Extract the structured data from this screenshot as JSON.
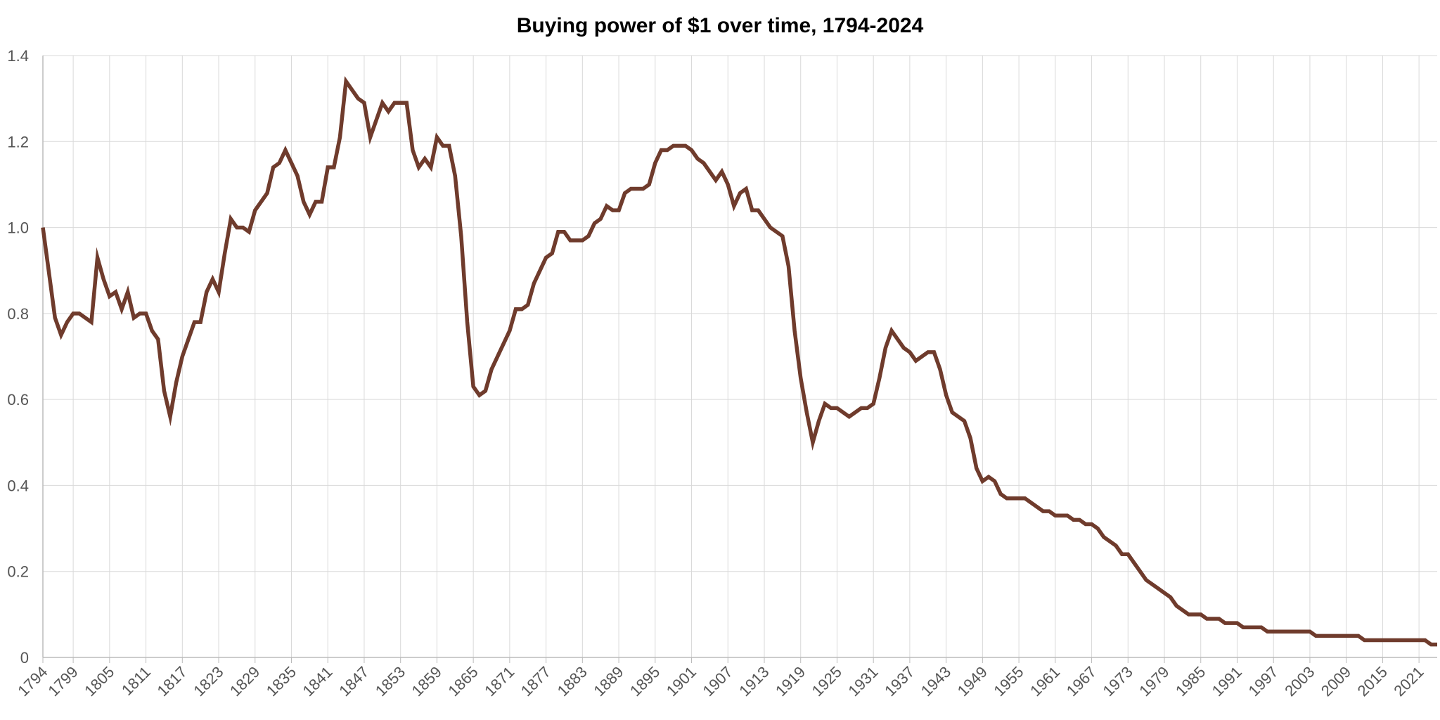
{
  "chart_data": {
    "type": "line",
    "title": "Buying power of $1 over time, 1794-2024",
    "xlabel": "",
    "ylabel": "",
    "xlim": [
      1794,
      2024
    ],
    "ylim": [
      0,
      1.4
    ],
    "yticks": [
      0,
      0.2,
      0.4,
      0.6,
      0.8,
      1.0,
      1.2,
      1.4
    ],
    "ytick_labels": [
      "0",
      "0.2",
      "0.4",
      "0.6",
      "0.8",
      "1.0",
      "1.2",
      "1.4"
    ],
    "xticks": [
      1794,
      1799,
      1805,
      1811,
      1817,
      1823,
      1829,
      1835,
      1841,
      1847,
      1853,
      1859,
      1865,
      1871,
      1877,
      1883,
      1889,
      1895,
      1901,
      1907,
      1913,
      1919,
      1925,
      1931,
      1937,
      1943,
      1949,
      1955,
      1961,
      1967,
      1973,
      1979,
      1985,
      1991,
      1997,
      2003,
      2009,
      2015,
      2021
    ],
    "grid": true,
    "legend": "none",
    "colors": {
      "line": "#6f3b2c",
      "grid": "#d9d9d9",
      "axis": "#bbbbbb",
      "tick_text": "#555555"
    },
    "series": [
      {
        "name": "Buying power of $1",
        "points": [
          [
            1794,
            1.0
          ],
          [
            1796,
            0.79
          ],
          [
            1797,
            0.75
          ],
          [
            1798,
            0.78
          ],
          [
            1799,
            0.8
          ],
          [
            1800,
            0.8
          ],
          [
            1802,
            0.78
          ],
          [
            1803,
            0.93
          ],
          [
            1804,
            0.88
          ],
          [
            1805,
            0.84
          ],
          [
            1806,
            0.85
          ],
          [
            1807,
            0.81
          ],
          [
            1808,
            0.85
          ],
          [
            1809,
            0.79
          ],
          [
            1810,
            0.8
          ],
          [
            1811,
            0.8
          ],
          [
            1812,
            0.76
          ],
          [
            1813,
            0.74
          ],
          [
            1814,
            0.62
          ],
          [
            1815,
            0.56
          ],
          [
            1816,
            0.64
          ],
          [
            1817,
            0.7
          ],
          [
            1819,
            0.78
          ],
          [
            1820,
            0.78
          ],
          [
            1821,
            0.85
          ],
          [
            1822,
            0.88
          ],
          [
            1823,
            0.85
          ],
          [
            1824,
            0.94
          ],
          [
            1825,
            1.02
          ],
          [
            1826,
            1.0
          ],
          [
            1827,
            1.0
          ],
          [
            1828,
            0.99
          ],
          [
            1829,
            1.04
          ],
          [
            1831,
            1.08
          ],
          [
            1832,
            1.14
          ],
          [
            1833,
            1.15
          ],
          [
            1834,
            1.18
          ],
          [
            1836,
            1.12
          ],
          [
            1837,
            1.06
          ],
          [
            1838,
            1.03
          ],
          [
            1839,
            1.06
          ],
          [
            1840,
            1.06
          ],
          [
            1841,
            1.14
          ],
          [
            1842,
            1.14
          ],
          [
            1843,
            1.21
          ],
          [
            1844,
            1.34
          ],
          [
            1846,
            1.3
          ],
          [
            1847,
            1.29
          ],
          [
            1848,
            1.21
          ],
          [
            1850,
            1.29
          ],
          [
            1851,
            1.27
          ],
          [
            1852,
            1.29
          ],
          [
            1854,
            1.29
          ],
          [
            1855,
            1.18
          ],
          [
            1856,
            1.14
          ],
          [
            1857,
            1.16
          ],
          [
            1858,
            1.14
          ],
          [
            1859,
            1.21
          ],
          [
            1860,
            1.19
          ],
          [
            1861,
            1.19
          ],
          [
            1862,
            1.12
          ],
          [
            1863,
            0.98
          ],
          [
            1864,
            0.78
          ],
          [
            1865,
            0.63
          ],
          [
            1866,
            0.61
          ],
          [
            1867,
            0.62
          ],
          [
            1868,
            0.67
          ],
          [
            1871,
            0.76
          ],
          [
            1872,
            0.81
          ],
          [
            1873,
            0.81
          ],
          [
            1874,
            0.82
          ],
          [
            1875,
            0.87
          ],
          [
            1877,
            0.93
          ],
          [
            1878,
            0.94
          ],
          [
            1879,
            0.99
          ],
          [
            1880,
            0.99
          ],
          [
            1881,
            0.97
          ],
          [
            1883,
            0.97
          ],
          [
            1884,
            0.98
          ],
          [
            1885,
            1.01
          ],
          [
            1886,
            1.02
          ],
          [
            1887,
            1.05
          ],
          [
            1888,
            1.04
          ],
          [
            1889,
            1.04
          ],
          [
            1890,
            1.08
          ],
          [
            1891,
            1.09
          ],
          [
            1893,
            1.09
          ],
          [
            1894,
            1.1
          ],
          [
            1895,
            1.15
          ],
          [
            1896,
            1.18
          ],
          [
            1897,
            1.18
          ],
          [
            1898,
            1.19
          ],
          [
            1900,
            1.19
          ],
          [
            1901,
            1.18
          ],
          [
            1902,
            1.16
          ],
          [
            1903,
            1.15
          ],
          [
            1905,
            1.11
          ],
          [
            1906,
            1.13
          ],
          [
            1907,
            1.1
          ],
          [
            1908,
            1.05
          ],
          [
            1909,
            1.08
          ],
          [
            1910,
            1.09
          ],
          [
            1911,
            1.04
          ],
          [
            1912,
            1.04
          ],
          [
            1914,
            1.0
          ],
          [
            1916,
            0.98
          ],
          [
            1917,
            0.91
          ],
          [
            1918,
            0.76
          ],
          [
            1919,
            0.65
          ],
          [
            1920,
            0.57
          ],
          [
            1921,
            0.5
          ],
          [
            1922,
            0.55
          ],
          [
            1923,
            0.59
          ],
          [
            1924,
            0.58
          ],
          [
            1925,
            0.58
          ],
          [
            1927,
            0.56
          ],
          [
            1928,
            0.57
          ],
          [
            1929,
            0.58
          ],
          [
            1930,
            0.58
          ],
          [
            1931,
            0.59
          ],
          [
            1932,
            0.65
          ],
          [
            1933,
            0.72
          ],
          [
            1934,
            0.76
          ],
          [
            1935,
            0.74
          ],
          [
            1936,
            0.72
          ],
          [
            1937,
            0.71
          ],
          [
            1938,
            0.69
          ],
          [
            1940,
            0.71
          ],
          [
            1941,
            0.71
          ],
          [
            1942,
            0.67
          ],
          [
            1943,
            0.61
          ],
          [
            1944,
            0.57
          ],
          [
            1946,
            0.55
          ],
          [
            1947,
            0.51
          ],
          [
            1948,
            0.44
          ],
          [
            1949,
            0.41
          ],
          [
            1950,
            0.42
          ],
          [
            1951,
            0.41
          ],
          [
            1952,
            0.38
          ],
          [
            1953,
            0.37
          ],
          [
            1956,
            0.37
          ],
          [
            1957,
            0.36
          ],
          [
            1958,
            0.35
          ],
          [
            1959,
            0.34
          ],
          [
            1960,
            0.34
          ],
          [
            1961,
            0.33
          ],
          [
            1963,
            0.33
          ],
          [
            1964,
            0.32
          ],
          [
            1965,
            0.32
          ],
          [
            1966,
            0.31
          ],
          [
            1967,
            0.31
          ],
          [
            1968,
            0.3
          ],
          [
            1969,
            0.28
          ],
          [
            1971,
            0.26
          ],
          [
            1972,
            0.24
          ],
          [
            1973,
            0.24
          ],
          [
            1974,
            0.22
          ],
          [
            1976,
            0.18
          ],
          [
            1978,
            0.16
          ],
          [
            1980,
            0.14
          ],
          [
            1981,
            0.12
          ],
          [
            1983,
            0.1
          ],
          [
            1985,
            0.1
          ],
          [
            1986,
            0.09
          ],
          [
            1988,
            0.09
          ],
          [
            1989,
            0.08
          ],
          [
            1991,
            0.08
          ],
          [
            1992,
            0.07
          ],
          [
            1995,
            0.07
          ],
          [
            1996,
            0.06
          ],
          [
            2003,
            0.06
          ],
          [
            2004,
            0.05
          ],
          [
            2011,
            0.05
          ],
          [
            2012,
            0.04
          ],
          [
            2022,
            0.04
          ],
          [
            2023,
            0.03
          ],
          [
            2024,
            0.03
          ]
        ]
      }
    ]
  }
}
